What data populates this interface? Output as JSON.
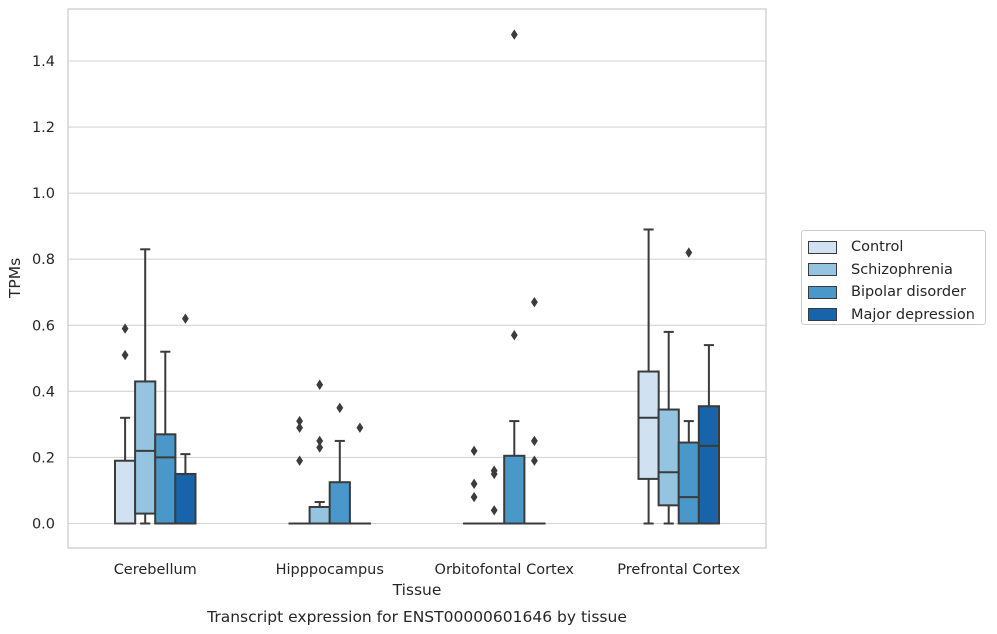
{
  "chart_data": {
    "type": "box",
    "xlabel": "Tissue",
    "ylabel": "TPMs",
    "caption": "Transcript expression for ENST00000601646 by tissue",
    "ylim": [
      -0.07,
      1.56
    ],
    "yticks": [
      0.0,
      0.2,
      0.4,
      0.6,
      0.8,
      1.0,
      1.2,
      1.4
    ],
    "ytick_labels": [
      "0.0",
      "0.2",
      "0.4",
      "0.6",
      "0.8",
      "1.0",
      "1.2",
      "1.4"
    ],
    "grid": "horizontal",
    "legend_position": "outside-right",
    "categories": [
      "Cerebellum",
      "Hipppocampus",
      "Orbitofontal Cortex",
      "Prefrontal Cortex"
    ],
    "series": [
      {
        "name": "Control",
        "color": "#d0e1f2",
        "boxes": [
          {
            "whislo": 0.0,
            "q1": 0.0,
            "med": 0.0,
            "q3": 0.19,
            "whishi": 0.32,
            "fliers": [
              0.51,
              0.59
            ]
          },
          {
            "whislo": 0.0,
            "q1": 0.0,
            "med": 0.0,
            "q3": 0.0,
            "whishi": 0.0,
            "fliers": [
              0.19,
              0.29,
              0.31
            ]
          },
          {
            "whislo": 0.0,
            "q1": 0.0,
            "med": 0.0,
            "q3": 0.0,
            "whishi": 0.0,
            "fliers": [
              0.08,
              0.12,
              0.22
            ]
          },
          {
            "whislo": 0.0,
            "q1": 0.135,
            "med": 0.32,
            "q3": 0.46,
            "whishi": 0.89,
            "fliers": []
          }
        ]
      },
      {
        "name": "Schizophrenia",
        "color": "#94c4df",
        "boxes": [
          {
            "whislo": 0.0,
            "q1": 0.03,
            "med": 0.22,
            "q3": 0.43,
            "whishi": 0.83,
            "fliers": []
          },
          {
            "whislo": 0.0,
            "q1": 0.0,
            "med": 0.0,
            "q3": 0.05,
            "whishi": 0.065,
            "fliers": [
              0.23,
              0.25,
              0.42
            ]
          },
          {
            "whislo": 0.0,
            "q1": 0.0,
            "med": 0.0,
            "q3": 0.0,
            "whishi": 0.0,
            "fliers": [
              0.04,
              0.15,
              0.16
            ]
          },
          {
            "whislo": 0.0,
            "q1": 0.055,
            "med": 0.155,
            "q3": 0.345,
            "whishi": 0.58,
            "fliers": []
          }
        ]
      },
      {
        "name": "Bipolar disorder",
        "color": "#4a98c9",
        "boxes": [
          {
            "whislo": 0.0,
            "q1": 0.0,
            "med": 0.2,
            "q3": 0.27,
            "whishi": 0.52,
            "fliers": []
          },
          {
            "whislo": 0.0,
            "q1": 0.0,
            "med": 0.0,
            "q3": 0.125,
            "whishi": 0.25,
            "fliers": [
              0.35
            ]
          },
          {
            "whislo": 0.0,
            "q1": 0.0,
            "med": 0.0,
            "q3": 0.205,
            "whishi": 0.31,
            "fliers": [
              0.57,
              1.48
            ]
          },
          {
            "whislo": 0.0,
            "q1": 0.0,
            "med": 0.08,
            "q3": 0.245,
            "whishi": 0.31,
            "fliers": [
              0.82
            ]
          }
        ]
      },
      {
        "name": "Major depression",
        "color": "#1764ab",
        "boxes": [
          {
            "whislo": 0.0,
            "q1": 0.0,
            "med": 0.0,
            "q3": 0.15,
            "whishi": 0.21,
            "fliers": [
              0.62
            ]
          },
          {
            "whislo": 0.0,
            "q1": 0.0,
            "med": 0.0,
            "q3": 0.0,
            "whishi": 0.0,
            "fliers": [
              0.29
            ]
          },
          {
            "whislo": 0.0,
            "q1": 0.0,
            "med": 0.0,
            "q3": 0.0,
            "whishi": 0.0,
            "fliers": [
              0.19,
              0.25,
              0.67
            ]
          },
          {
            "whislo": 0.0,
            "q1": 0.0,
            "med": 0.235,
            "q3": 0.355,
            "whishi": 0.54,
            "fliers": []
          }
        ]
      }
    ]
  }
}
